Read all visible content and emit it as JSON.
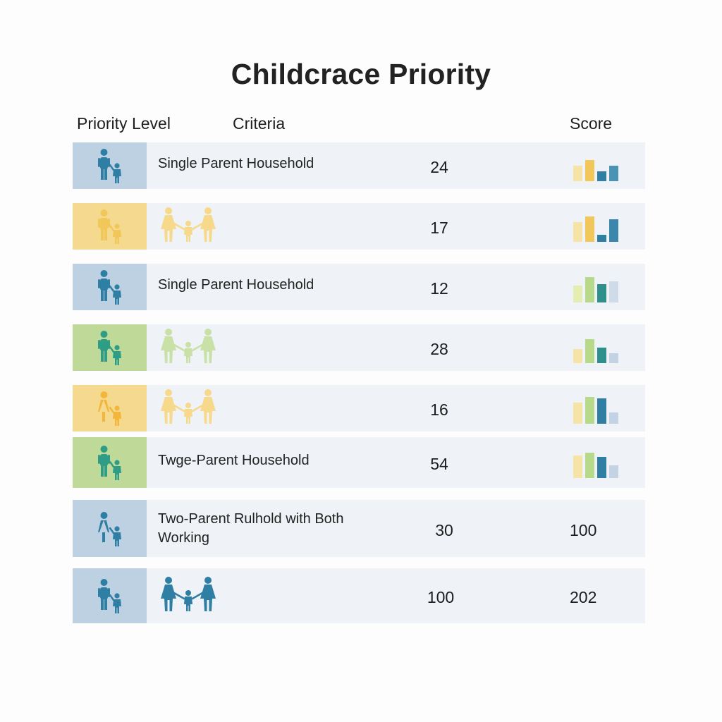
{
  "title": "Childcrace Priority",
  "headers": {
    "priority_level": "Priority Level",
    "criteria": "Criteria",
    "score": "Score"
  },
  "colors": {
    "blue_dark": "#2f7fa5",
    "blue_swatch": "#bdd1e2",
    "yellow": "#f2c75a",
    "yellow_swatch": "#f5d98f",
    "green": "#2f9d86",
    "green_light": "#a8cf7a",
    "green_swatch": "#bfda98",
    "row_bg": "#eff2f6"
  },
  "rows": [
    {
      "swatch": "blue",
      "figure_color": "#2f7fa5",
      "figure_icon": "parent-child-icon",
      "criteria": "Single Parent Household",
      "count": "24",
      "score": "",
      "family_icon": null,
      "bars": [
        {
          "v": 0.55,
          "c": "#f6e3a6"
        },
        {
          "v": 0.75,
          "c": "#f2c75a"
        },
        {
          "v": 0.35,
          "c": "#2f7fa5"
        },
        {
          "v": 0.55,
          "c": "#4a93b5"
        }
      ]
    },
    {
      "swatch": "yellow",
      "figure_color": "#f2c75a",
      "figure_icon": "parent-child-icon",
      "criteria": "",
      "count": "17",
      "score": "",
      "family_icon": {
        "name": "family-icon",
        "color": "#f6d98a"
      },
      "bars": [
        {
          "v": 0.7,
          "c": "#f6e3a6"
        },
        {
          "v": 0.9,
          "c": "#f2c75a"
        },
        {
          "v": 0.25,
          "c": "#2f7fa5"
        },
        {
          "v": 0.8,
          "c": "#3a86ac"
        }
      ]
    },
    {
      "swatch": "blue",
      "figure_color": "#2f7fa5",
      "figure_icon": "parent-child-icon",
      "criteria": "Single Parent Household",
      "count": "12",
      "score": "",
      "family_icon": null,
      "bars": [
        {
          "v": 0.6,
          "c": "#e6edb0"
        },
        {
          "v": 0.9,
          "c": "#b7d98a"
        },
        {
          "v": 0.65,
          "c": "#2f8f8a"
        },
        {
          "v": 0.75,
          "c": "#cfdbe8"
        }
      ]
    },
    {
      "swatch": "green",
      "figure_color": "#2f9d86",
      "figure_icon": "parent-child-icon",
      "criteria": "",
      "count": "28",
      "score": "",
      "family_icon": {
        "name": "family-icon",
        "color": "#c9e0a6"
      },
      "bars": [
        {
          "v": 0.5,
          "c": "#f6e3a6"
        },
        {
          "v": 0.85,
          "c": "#b7d98a"
        },
        {
          "v": 0.55,
          "c": "#2f8f8a"
        },
        {
          "v": 0.35,
          "c": "#c3d3e4"
        }
      ]
    },
    {
      "swatch": "yellow",
      "figure_color": "#f2b73a",
      "figure_icon": "parent-child-icon",
      "criteria": "",
      "count": "16",
      "score": "",
      "family_icon": {
        "name": "family-icon",
        "color": "#f6d98a"
      },
      "bars": [
        {
          "v": 0.75,
          "c": "#f6e3a6"
        },
        {
          "v": 0.95,
          "c": "#b7d98a"
        },
        {
          "v": 0.9,
          "c": "#2f7fa5"
        },
        {
          "v": 0.4,
          "c": "#c3d3e4"
        }
      ]
    },
    {
      "swatch": "green",
      "figure_color": "#2f9d86",
      "figure_icon": "parent-child-icon",
      "criteria": "Twge-Parent Household",
      "count": "54",
      "score": "",
      "family_icon": null,
      "bars": [
        {
          "v": 0.8,
          "c": "#f6e3a6"
        },
        {
          "v": 0.9,
          "c": "#b7d98a"
        },
        {
          "v": 0.75,
          "c": "#2f7fa5"
        },
        {
          "v": 0.45,
          "c": "#c3d3e4"
        }
      ]
    },
    {
      "swatch": "blue",
      "figure_color": "#2f7fa5",
      "figure_icon": "mother-child-icon",
      "criteria": "Two-Parent Rulhold with Both Working",
      "count": "30",
      "score": "100",
      "family_icon": null,
      "bars": []
    },
    {
      "swatch": "blue",
      "figure_color": "#2f7fa5",
      "figure_icon": "parent-child-icon",
      "criteria": "",
      "count": "100",
      "score": "202",
      "family_icon": {
        "name": "family-icon",
        "color": "#2f7fa5"
      },
      "bars": []
    }
  ]
}
